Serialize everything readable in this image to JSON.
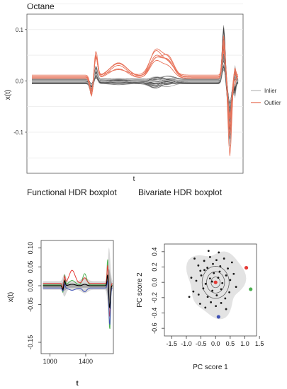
{
  "chart_data": [
    {
      "type": "line",
      "title": "Octane",
      "xlabel": "t",
      "ylabel": "x(t)",
      "ylim": [
        -0.18,
        0.13
      ],
      "y_ticks": [
        0.1,
        0.0,
        -0.1
      ],
      "y_tick_labels": [
        "0.1",
        "0.0",
        "-0.1"
      ],
      "grid": true,
      "legend": {
        "placement": "right",
        "entries": [
          {
            "label": "Inlier",
            "color": "#bdbdbd"
          },
          {
            "label": "Outlier",
            "color": "#e8735a"
          }
        ]
      },
      "n_inliers": 48,
      "n_outliers": 6
    },
    {
      "type": "line",
      "title": "Functional HDR boxplot",
      "xlabel": "t",
      "ylabel": "x(t)",
      "xlim": [
        900,
        1710
      ],
      "ylim": [
        -0.18,
        0.12
      ],
      "x_ticks": [
        1000,
        1400
      ],
      "x_tick_labels": [
        "1000",
        "1400"
      ],
      "y_ticks": [
        -0.15,
        -0.05,
        0.0,
        0.05,
        0.1
      ],
      "y_tick_labels": [
        "-0.15",
        "-0.05",
        "0.00",
        "0.05",
        "0.10"
      ],
      "series_colors": [
        "#000000",
        "#e53935",
        "#4caf50",
        "#3f51b5"
      ]
    },
    {
      "type": "scatter",
      "title": "Bivariate HDR boxplot",
      "xlabel": "PC score 1",
      "ylabel": "PC score 2",
      "xlim": [
        -1.75,
        1.4
      ],
      "ylim": [
        -0.7,
        0.5
      ],
      "x_ticks": [
        -1.5,
        -1.0,
        -0.5,
        0.0,
        0.5,
        1.0,
        1.5
      ],
      "x_tick_labels": [
        "-1.5",
        "-1.0",
        "-0.5",
        "0.0",
        "0.5",
        "1.0",
        "1.5"
      ],
      "y_ticks": [
        -0.6,
        -0.4,
        -0.2,
        0.0,
        0.2,
        0.4
      ],
      "y_tick_labels": [
        "-0.6",
        "-0.4",
        "-0.2",
        "0.0",
        "0.2",
        "0.4"
      ],
      "mode": {
        "x": 0.0,
        "y": 0.0,
        "color": "#e53935"
      },
      "outliers": [
        {
          "x": 1.05,
          "y": 0.19,
          "color": "#e53935"
        },
        {
          "x": 1.2,
          "y": -0.09,
          "color": "#4caf50"
        },
        {
          "x": 0.1,
          "y": -0.45,
          "color": "#3f51b5"
        }
      ],
      "points": [
        [
          -0.72,
          0.31
        ],
        [
          -0.59,
          0.22
        ],
        [
          -0.52,
          0.15
        ],
        [
          -0.39,
          0.28
        ],
        [
          -0.28,
          0.19
        ],
        [
          -0.19,
          0.33
        ],
        [
          -0.09,
          0.24
        ],
        [
          0.03,
          0.29
        ],
        [
          0.16,
          0.21
        ],
        [
          0.29,
          0.31
        ],
        [
          0.42,
          0.18
        ],
        [
          0.56,
          0.26
        ],
        [
          -0.83,
          0.06
        ],
        [
          -0.66,
          0.02
        ],
        [
          -0.49,
          0.09
        ],
        [
          -0.34,
          -0.02
        ],
        [
          -0.19,
          0.05
        ],
        [
          -0.06,
          0.12
        ],
        [
          0.09,
          0.06
        ],
        [
          0.23,
          -0.01
        ],
        [
          0.36,
          0.09
        ],
        [
          0.5,
          0.03
        ],
        [
          0.62,
          0.11
        ],
        [
          -0.76,
          -0.12
        ],
        [
          -0.58,
          -0.16
        ],
        [
          -0.42,
          -0.08
        ],
        [
          -0.27,
          -0.19
        ],
        [
          -0.11,
          -0.11
        ],
        [
          0.04,
          -0.17
        ],
        [
          0.19,
          -0.09
        ],
        [
          0.33,
          -0.21
        ],
        [
          0.47,
          -0.13
        ],
        [
          -0.53,
          -0.28
        ],
        [
          -0.35,
          -0.33
        ],
        [
          -0.16,
          -0.26
        ],
        [
          0.01,
          -0.31
        ],
        [
          0.19,
          -0.27
        ],
        [
          0.36,
          -0.35
        ],
        [
          -0.24,
          0.41
        ],
        [
          0.11,
          0.39
        ],
        [
          -0.9,
          -0.19
        ],
        [
          0.7,
          -0.06
        ],
        [
          -0.12,
          0.01
        ],
        [
          0.14,
          0.14
        ],
        [
          -0.38,
          0.16
        ]
      ]
    }
  ]
}
